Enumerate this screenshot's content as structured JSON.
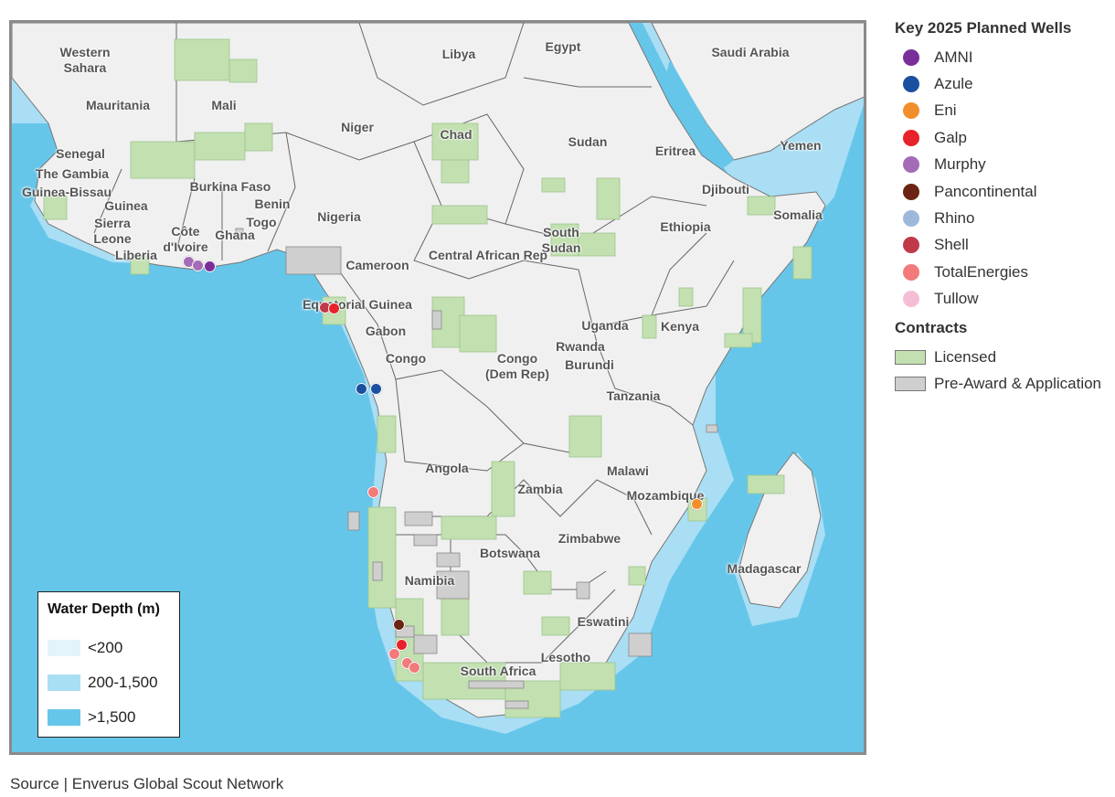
{
  "source_text": "Source | Enverus Global Scout Network",
  "depth_legend": {
    "title": "Water Depth (m)",
    "items": [
      {
        "label": "<200",
        "color": "#e4f4fb"
      },
      {
        "label": "200-1,500",
        "color": "#a9def4"
      },
      {
        "label": ">1,500",
        "color": "#66c6ea"
      }
    ]
  },
  "wells_legend": {
    "title": "Key 2025 Planned Wells",
    "items": [
      {
        "label": "AMNI",
        "color": "#7a2e9a"
      },
      {
        "label": "Azule",
        "color": "#1b4fa0"
      },
      {
        "label": "Eni",
        "color": "#f28e2b"
      },
      {
        "label": "Galp",
        "color": "#e8222a"
      },
      {
        "label": "Murphy",
        "color": "#a46cb7"
      },
      {
        "label": "Pancontinental",
        "color": "#6b2413"
      },
      {
        "label": "Rhino",
        "color": "#9db8da"
      },
      {
        "label": "Shell",
        "color": "#c0394b"
      },
      {
        "label": "TotalEnergies",
        "color": "#f37a7a"
      },
      {
        "label": "Tullow",
        "color": "#f4bfd6"
      }
    ]
  },
  "contracts_legend": {
    "title": "Contracts",
    "items": [
      {
        "label": "Licensed",
        "color": "#c2e0b0"
      },
      {
        "label": "Pre-Award & Application",
        "color": "#cfcfcf"
      }
    ]
  },
  "countries": [
    {
      "id": "western-sahara",
      "label": "Western\nSahara"
    },
    {
      "id": "mauritania",
      "label": "Mauritania"
    },
    {
      "id": "mali",
      "label": "Mali"
    },
    {
      "id": "libya",
      "label": "Libya"
    },
    {
      "id": "egypt",
      "label": "Egypt"
    },
    {
      "id": "saudi-arabia",
      "label": "Saudi Arabia"
    },
    {
      "id": "niger",
      "label": "Niger"
    },
    {
      "id": "chad",
      "label": "Chad"
    },
    {
      "id": "sudan",
      "label": "Sudan"
    },
    {
      "id": "eritrea",
      "label": "Eritrea"
    },
    {
      "id": "yemen",
      "label": "Yemen"
    },
    {
      "id": "senegal",
      "label": "Senegal"
    },
    {
      "id": "the-gambia",
      "label": "The Gambia"
    },
    {
      "id": "guinea-bissau",
      "label": "Guinea-Bissau"
    },
    {
      "id": "guinea",
      "label": "Guinea"
    },
    {
      "id": "sierra-leone",
      "label": "Sierra\nLeone"
    },
    {
      "id": "liberia",
      "label": "Liberia"
    },
    {
      "id": "cote-divoire",
      "label": "Côte\nd'Ivoire"
    },
    {
      "id": "burkina-faso",
      "label": "Burkina Faso"
    },
    {
      "id": "ghana",
      "label": "Ghana"
    },
    {
      "id": "benin",
      "label": "Benin"
    },
    {
      "id": "togo",
      "label": "Togo"
    },
    {
      "id": "nigeria",
      "label": "Nigeria"
    },
    {
      "id": "djibouti",
      "label": "Djibouti"
    },
    {
      "id": "somalia",
      "label": "Somalia"
    },
    {
      "id": "ethiopia",
      "label": "Ethiopia"
    },
    {
      "id": "south-sudan",
      "label": "South\nSudan"
    },
    {
      "id": "central-african-rep",
      "label": "Central African Rep"
    },
    {
      "id": "cameroon",
      "label": "Cameroon"
    },
    {
      "id": "equatorial-guinea",
      "label": "Equatorial Guinea"
    },
    {
      "id": "gabon",
      "label": "Gabon"
    },
    {
      "id": "congo",
      "label": "Congo"
    },
    {
      "id": "congo-dem-rep",
      "label": "Congo\n(Dem Rep)"
    },
    {
      "id": "uganda",
      "label": "Uganda"
    },
    {
      "id": "kenya",
      "label": "Kenya"
    },
    {
      "id": "rwanda",
      "label": "Rwanda"
    },
    {
      "id": "burundi",
      "label": "Burundi"
    },
    {
      "id": "tanzania",
      "label": "Tanzania"
    },
    {
      "id": "angola",
      "label": "Angola"
    },
    {
      "id": "zambia",
      "label": "Zambia"
    },
    {
      "id": "malawi",
      "label": "Malawi"
    },
    {
      "id": "mozambique",
      "label": "Mozambique"
    },
    {
      "id": "zimbabwe",
      "label": "Zimbabwe"
    },
    {
      "id": "botswana",
      "label": "Botswana"
    },
    {
      "id": "namibia",
      "label": "Namibia"
    },
    {
      "id": "madagascar",
      "label": "Madagascar"
    },
    {
      "id": "eswatini",
      "label": "Eswatini"
    },
    {
      "id": "lesotho",
      "label": "Lesotho"
    },
    {
      "id": "south-africa",
      "label": "South Africa"
    }
  ],
  "wells": [
    {
      "operator": "Murphy",
      "color": "#a46cb7"
    },
    {
      "operator": "Murphy",
      "color": "#a46cb7"
    },
    {
      "operator": "AMNI",
      "color": "#7a2e9a"
    },
    {
      "operator": "Shell",
      "color": "#c0394b"
    },
    {
      "operator": "Galp",
      "color": "#e8222a"
    },
    {
      "operator": "Azule",
      "color": "#1b4fa0"
    },
    {
      "operator": "Azule",
      "color": "#1b4fa0"
    },
    {
      "operator": "TotalEnergies",
      "color": "#f37a7a"
    },
    {
      "operator": "Eni",
      "color": "#f28e2b"
    },
    {
      "operator": "Pancontinental",
      "color": "#6b2413"
    },
    {
      "operator": "Galp",
      "color": "#e8222a"
    },
    {
      "operator": "TotalEnergies",
      "color": "#f37a7a"
    },
    {
      "operator": "TotalEnergies",
      "color": "#f37a7a"
    },
    {
      "operator": "TotalEnergies",
      "color": "#f37a7a"
    }
  ]
}
